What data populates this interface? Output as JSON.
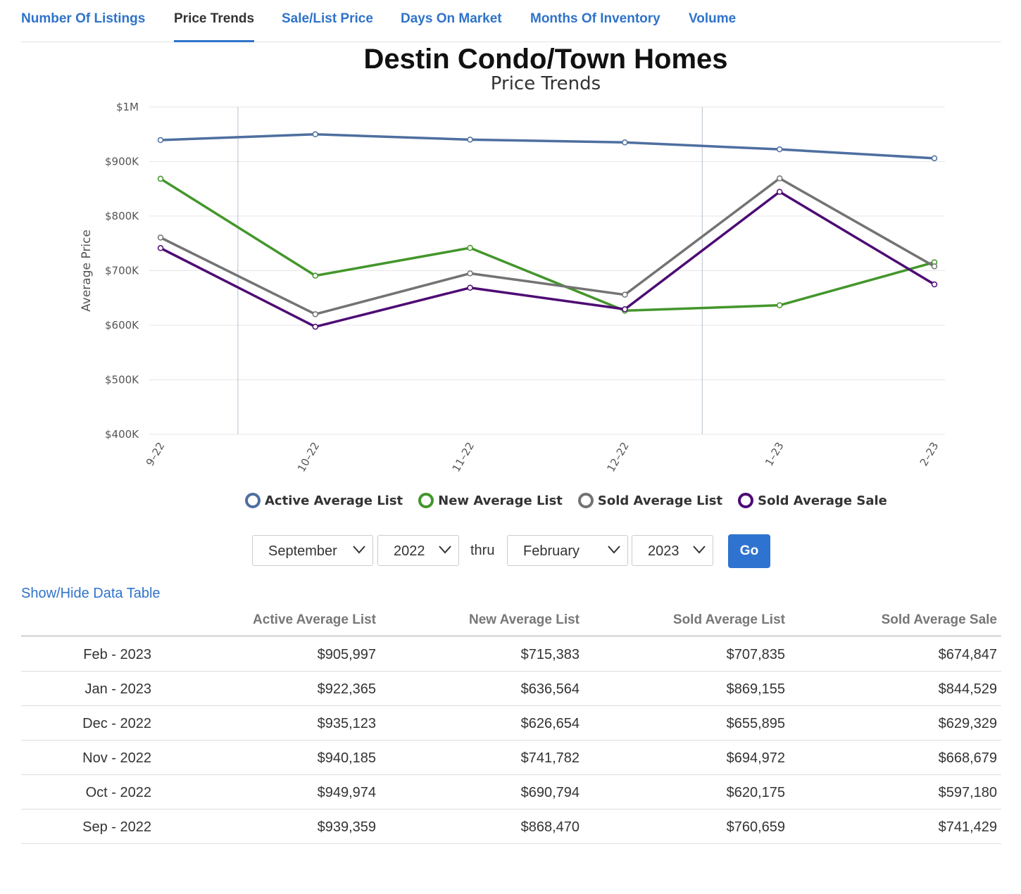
{
  "tabs": [
    {
      "label": "Number Of Listings",
      "active": false
    },
    {
      "label": "Price Trends",
      "active": true
    },
    {
      "label": "Sale/List Price",
      "active": false
    },
    {
      "label": "Days On Market",
      "active": false
    },
    {
      "label": "Months Of Inventory",
      "active": false
    },
    {
      "label": "Volume",
      "active": false
    }
  ],
  "chart_data": {
    "type": "line",
    "title": "Destin Condo/Town Homes",
    "subtitle": "Price Trends",
    "xlabel": "",
    "ylabel": "Average Price",
    "categories": [
      "9–22",
      "10–22",
      "11–22",
      "12–22",
      "1–23",
      "2–23"
    ],
    "ylim": [
      400000,
      1000000
    ],
    "yticks": [
      "$400K",
      "$500K",
      "$600K",
      "$700K",
      "$800K",
      "$900K",
      "$1M"
    ],
    "grid": true,
    "legend_position": "bottom",
    "series": [
      {
        "name": "Active Average List",
        "color": "#4e6f9f",
        "values": [
          939359,
          949974,
          940185,
          935123,
          922365,
          905997
        ]
      },
      {
        "name": "New Average List",
        "color": "#43962b",
        "values": [
          868470,
          690794,
          741782,
          626654,
          636564,
          715383
        ]
      },
      {
        "name": "Sold Average List",
        "color": "#737373",
        "values": [
          760659,
          620175,
          694972,
          655895,
          869155,
          707835
        ]
      },
      {
        "name": "Sold Average Sale",
        "color": "#4d0b74",
        "values": [
          741429,
          597180,
          668679,
          629329,
          844529,
          674847
        ]
      }
    ]
  },
  "controls": {
    "start_month": "September",
    "start_year": "2022",
    "thru_label": "thru",
    "end_month": "February",
    "end_year": "2023",
    "go_label": "Go"
  },
  "table": {
    "toggle_label": "Show/Hide Data Table",
    "headers": [
      "",
      "Active Average List",
      "New Average List",
      "Sold Average List",
      "Sold Average Sale"
    ],
    "rows": [
      [
        "Feb - 2023",
        "$905,997",
        "$715,383",
        "$707,835",
        "$674,847"
      ],
      [
        "Jan - 2023",
        "$922,365",
        "$636,564",
        "$869,155",
        "$844,529"
      ],
      [
        "Dec - 2022",
        "$935,123",
        "$626,654",
        "$655,895",
        "$629,329"
      ],
      [
        "Nov - 2022",
        "$940,185",
        "$741,782",
        "$694,972",
        "$668,679"
      ],
      [
        "Oct - 2022",
        "$949,974",
        "$690,794",
        "$620,175",
        "$597,180"
      ],
      [
        "Sep - 2022",
        "$939,359",
        "$868,470",
        "$760,659",
        "$741,429"
      ]
    ]
  }
}
